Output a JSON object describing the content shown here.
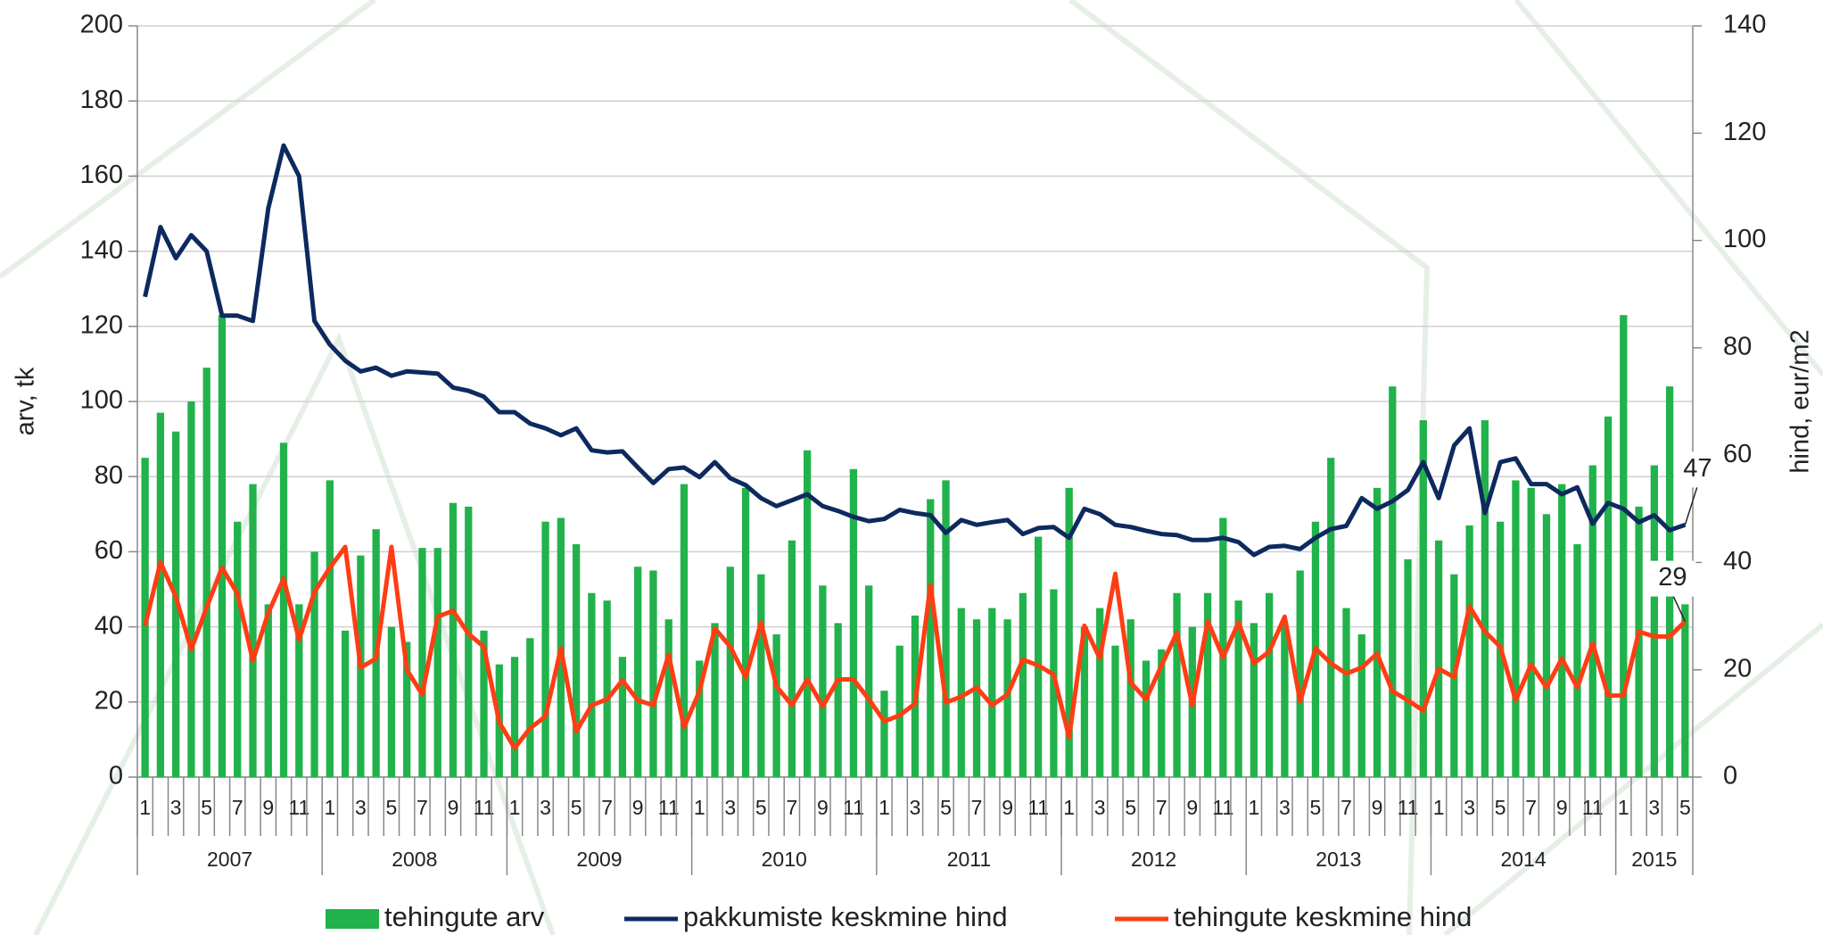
{
  "chart_data": {
    "type": "bar_line",
    "y_label": "arv, tk",
    "y2_label": "hind, eur/m2",
    "categories": [
      "1",
      null,
      "3",
      null,
      "5",
      null,
      "7",
      null,
      "9",
      null,
      "11",
      null,
      "1",
      null,
      "3",
      null,
      "5",
      null,
      "7",
      null,
      "9",
      null,
      "11",
      null,
      "1",
      null,
      "3",
      null,
      "5",
      null,
      "7",
      null,
      "9",
      null,
      "11",
      null,
      "1",
      null,
      "3",
      null,
      "5",
      null,
      "7",
      null,
      "9",
      null,
      "11",
      null,
      "1",
      null,
      "3",
      null,
      "5",
      null,
      "7",
      null,
      "9",
      null,
      "11",
      null,
      "1",
      null,
      "3",
      null,
      "5",
      null,
      "7",
      null,
      "9",
      null,
      "11",
      null,
      "1",
      null,
      "3",
      null,
      "5",
      null,
      "7",
      null,
      "9",
      null,
      "11",
      null,
      "1",
      null,
      "3",
      null,
      "5",
      null,
      "7",
      null,
      "9",
      null,
      "11",
      null,
      "1",
      null,
      "3",
      null,
      "5"
    ],
    "x_groups": [
      {
        "label": "2007",
        "span": 12
      },
      {
        "label": "2008",
        "span": 12
      },
      {
        "label": "2009",
        "span": 12
      },
      {
        "label": "2010",
        "span": 12
      },
      {
        "label": "2011",
        "span": 12
      },
      {
        "label": "2012",
        "span": 12
      },
      {
        "label": "2013",
        "span": 12
      },
      {
        "label": "2014",
        "span": 12
      },
      {
        "label": "2015",
        "span": 5
      }
    ],
    "series": [
      {
        "name": "tehingute arv",
        "kind": "bar",
        "color": "#21b24b",
        "values": [
          85,
          97,
          92,
          100,
          109,
          123,
          68,
          78,
          46,
          89,
          46,
          60,
          79,
          39,
          59,
          66,
          40,
          36,
          61,
          61,
          73,
          72,
          39,
          30,
          32,
          37,
          68,
          69,
          62,
          49,
          47,
          32,
          56,
          55,
          42,
          78,
          31,
          41,
          56,
          77,
          54,
          38,
          63,
          87,
          51,
          41,
          82,
          51,
          23,
          35,
          43,
          74,
          79,
          45,
          42,
          45,
          42,
          49,
          64,
          50,
          77,
          40,
          45,
          35,
          42,
          31,
          34,
          49,
          40,
          49,
          69,
          47,
          41,
          49,
          41,
          55,
          68,
          85,
          45,
          38,
          77,
          104,
          58,
          95,
          63,
          54,
          67,
          95,
          68,
          79,
          77,
          70,
          78,
          62,
          83,
          96,
          123,
          72,
          83,
          104,
          46
        ]
      },
      {
        "name": "pakkumiste keskmine hind",
        "kind": "line",
        "axis": "y2",
        "color": "#0d2a5e",
        "values": [
          89.5,
          102.5,
          96.7,
          101,
          98,
          86,
          86,
          85,
          106,
          117.7,
          112,
          85,
          80.6,
          77.6,
          75.6,
          76.3,
          74.8,
          75.6,
          75.4,
          75.2,
          72.6,
          72,
          70.9,
          68,
          68,
          65.9,
          65,
          63.7,
          65,
          60.9,
          60.5,
          60.7,
          57.7,
          54.8,
          57.4,
          57.7,
          55.9,
          58.7,
          55.7,
          54.4,
          52,
          50.5,
          51.6,
          52.7,
          50.5,
          49.6,
          48.5,
          47.7,
          48.1,
          49.8,
          49.2,
          48.8,
          45.5,
          47.9,
          47,
          47.5,
          47.9,
          45.3,
          46.4,
          46.6,
          44.6,
          50,
          49,
          47,
          46.6,
          45.9,
          45.3,
          45.1,
          44.2,
          44.2,
          44.6,
          43.8,
          41.4,
          42.9,
          43.1,
          42.5,
          44.6,
          46.2,
          46.8,
          52,
          50,
          51.4,
          53.5,
          58.7,
          52,
          61.8,
          65,
          49.2,
          58.7,
          59.4,
          54.6,
          54.6,
          52.7,
          54,
          47.2,
          51.1,
          50,
          47.5,
          48.8,
          46,
          47
        ],
        "value_labels": [
          null,
          null,
          null,
          null,
          null,
          null,
          null,
          null,
          null,
          null,
          null,
          null,
          null,
          null,
          null,
          null,
          null,
          null,
          null,
          null,
          null,
          null,
          null,
          null,
          null,
          null,
          null,
          null,
          null,
          null,
          null,
          null,
          null,
          null,
          null,
          null,
          null,
          null,
          null,
          null,
          null,
          null,
          null,
          null,
          null,
          null,
          null,
          null,
          null,
          null,
          null,
          null,
          null,
          null,
          null,
          null,
          null,
          null,
          null,
          null,
          null,
          null,
          null,
          null,
          null,
          null,
          null,
          null,
          null,
          null,
          null,
          null,
          null,
          null,
          null,
          null,
          null,
          null,
          null,
          null,
          null,
          null,
          null,
          null,
          null,
          null,
          null,
          null,
          null,
          null,
          null,
          null,
          null,
          null,
          null,
          null,
          null,
          null,
          null,
          null,
          "47"
        ]
      },
      {
        "name": "tehingute keskmine hind",
        "kind": "line",
        "axis": "y2",
        "color": "#ff3d14",
        "values": [
          28.2,
          40,
          33.6,
          23.8,
          31.6,
          39,
          34.2,
          21.7,
          30.6,
          37,
          25.6,
          34.5,
          39,
          42.9,
          20.4,
          22.1,
          42.9,
          20,
          15.4,
          29.9,
          31,
          26.7,
          24.3,
          10.2,
          5.4,
          9.1,
          11.3,
          24,
          8.5,
          13.4,
          14.5,
          18,
          14.3,
          13.4,
          22.8,
          9.3,
          16,
          27.7,
          24.3,
          18.6,
          28.8,
          16.9,
          13.4,
          18.2,
          13.2,
          18.2,
          18.2,
          14.5,
          10.4,
          11.5,
          13.7,
          35.8,
          13.9,
          15,
          16.7,
          13.4,
          15.4,
          21.9,
          20.8,
          19.1,
          7.4,
          28.2,
          22.1,
          37.9,
          17.6,
          14.5,
          20.8,
          26.9,
          13.4,
          29.1,
          22.3,
          28.8,
          21.2,
          23.4,
          29.9,
          14.1,
          24,
          21.2,
          19.3,
          20.4,
          23,
          16,
          14.3,
          12.4,
          20.2,
          18.6,
          31.8,
          27.1,
          24.3,
          14.3,
          21,
          16.7,
          22.1,
          16.7,
          24.9,
          15.2,
          15.2,
          27.1,
          26.2,
          26.2,
          29
        ],
        "value_labels": [
          null,
          null,
          null,
          null,
          null,
          null,
          null,
          null,
          null,
          null,
          null,
          null,
          null,
          null,
          null,
          null,
          null,
          null,
          null,
          null,
          null,
          null,
          null,
          null,
          null,
          null,
          null,
          null,
          null,
          null,
          null,
          null,
          null,
          null,
          null,
          null,
          null,
          null,
          null,
          null,
          null,
          null,
          null,
          null,
          null,
          null,
          null,
          null,
          null,
          null,
          null,
          null,
          null,
          null,
          null,
          null,
          null,
          null,
          null,
          null,
          null,
          null,
          null,
          null,
          null,
          null,
          null,
          null,
          null,
          null,
          null,
          null,
          null,
          null,
          null,
          null,
          null,
          null,
          null,
          null,
          null,
          null,
          null,
          null,
          null,
          null,
          null,
          null,
          null,
          null,
          null,
          null,
          null,
          null,
          null,
          null,
          null,
          null,
          null,
          null,
          "29"
        ]
      }
    ],
    "ylim": [
      0,
      200
    ],
    "yticks": [
      0,
      20,
      40,
      60,
      80,
      100,
      120,
      140,
      160,
      180,
      200
    ],
    "y2lim": [
      0,
      140
    ],
    "y2ticks": [
      0,
      20,
      40,
      60,
      80,
      100,
      120,
      140
    ],
    "grid": true,
    "legend": "bottom"
  }
}
